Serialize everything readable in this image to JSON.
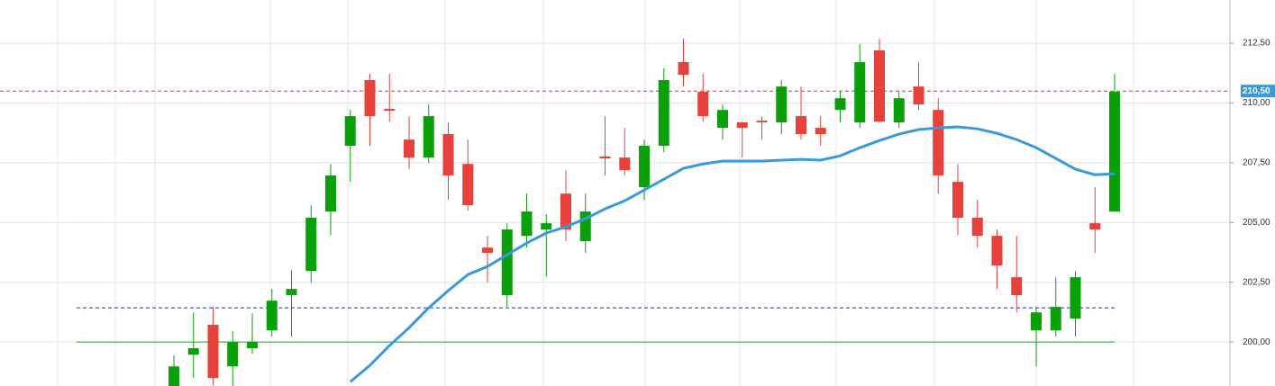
{
  "chart_data": {
    "type": "candlestick",
    "open": [
      198.16,
      199.47,
      200.72,
      198.98,
      199.74,
      200.49,
      201.96,
      202.97,
      205.46,
      208.21,
      210.96,
      209.75,
      208.47,
      207.72,
      208.7,
      207.45,
      203.95,
      201.96,
      204.44,
      204.71,
      206.21,
      204.22,
      207.76,
      207.72,
      206.48,
      208.21,
      211.71,
      210.47,
      208.96,
      209.19,
      209.26,
      209.19,
      209.45,
      208.96,
      209.71,
      209.19,
      212.2,
      209.19,
      210.69,
      209.71,
      206.7,
      205.2,
      204.44,
      202.71,
      200.49,
      200.49,
      200.98,
      204.97,
      205.46
    ],
    "high": [
      199.44,
      201.24,
      201.47,
      200.45,
      201.2,
      202.22,
      203.01,
      205.72,
      207.45,
      209.71,
      211.22,
      211.22,
      209.45,
      209.94,
      209.19,
      208.47,
      204.44,
      204.97,
      206.21,
      205.35,
      207.19,
      206.21,
      209.45,
      208.96,
      208.47,
      211.45,
      212.69,
      211.22,
      209.94,
      209.22,
      209.45,
      210.96,
      210.69,
      209.45,
      210.47,
      212.46,
      212.69,
      210.47,
      211.71,
      210.2,
      207.45,
      205.95,
      204.71,
      204.44,
      201.47,
      202.71,
      202.97,
      206.48,
      211.22
    ],
    "low": [
      198.0,
      198.49,
      198.19,
      198.1,
      199.51,
      200.23,
      200.23,
      202.48,
      204.48,
      206.7,
      208.21,
      209.22,
      207.23,
      207.49,
      205.95,
      205.5,
      202.48,
      201.47,
      203.95,
      202.75,
      204.22,
      203.73,
      206.97,
      206.97,
      205.95,
      207.94,
      210.69,
      209.22,
      208.47,
      207.72,
      208.47,
      208.7,
      208.47,
      208.21,
      209.19,
      208.96,
      209.19,
      208.96,
      209.71,
      206.21,
      204.48,
      203.95,
      202.22,
      201.24,
      198.98,
      200.23,
      200.23,
      203.73,
      205.46
    ],
    "close": [
      198.98,
      199.74,
      198.49,
      200.0,
      200.0,
      201.73,
      202.22,
      205.2,
      206.97,
      209.45,
      209.45,
      209.68,
      207.72,
      209.45,
      206.97,
      205.72,
      203.73,
      204.71,
      205.46,
      204.97,
      204.71,
      205.46,
      207.68,
      207.19,
      208.21,
      210.96,
      211.18,
      209.45,
      209.71,
      208.96,
      209.19,
      210.69,
      208.7,
      208.7,
      210.2,
      211.71,
      209.22,
      210.2,
      209.94,
      206.97,
      205.2,
      204.44,
      203.2,
      201.96,
      201.24,
      201.47,
      202.71,
      204.71,
      210.47
    ],
    "up_color": "#0aa00a",
    "down_color": "#e8403a",
    "moving_average": {
      "color": "#3a9ad9",
      "values": [
        null,
        null,
        null,
        null,
        null,
        null,
        null,
        null,
        null,
        198.34,
        199.02,
        199.85,
        200.6,
        201.43,
        202.15,
        202.82,
        203.16,
        203.65,
        204.14,
        204.56,
        204.82,
        205.16,
        205.57,
        205.91,
        206.36,
        206.81,
        207.27,
        207.45,
        207.57,
        207.57,
        207.57,
        207.61,
        207.64,
        207.61,
        207.79,
        208.13,
        208.43,
        208.7,
        208.89,
        208.96,
        209.0,
        208.92,
        208.73,
        208.47,
        208.13,
        207.68,
        207.23,
        207.0,
        207.04
      ]
    },
    "reference_lines": [
      {
        "value": 210.5,
        "label": "210,50",
        "color": "#e03030",
        "style": "dashed"
      },
      {
        "value": 201.43,
        "color": "#2233cc",
        "style": "dashed"
      },
      {
        "value": 200.0,
        "color": "#2a9a2a",
        "style": "solid"
      }
    ],
    "ylim": [
      198.16,
      214.31
    ],
    "yticks": [
      {
        "value": 200,
        "label": "200,00"
      },
      {
        "value": 202.5,
        "label": "202,50"
      },
      {
        "value": 205,
        "label": "205,00"
      },
      {
        "value": 207.5,
        "label": "207,50"
      },
      {
        "value": 210,
        "label": "210,00"
      },
      {
        "value": 212.5,
        "label": "212,50"
      }
    ],
    "grid": true
  }
}
